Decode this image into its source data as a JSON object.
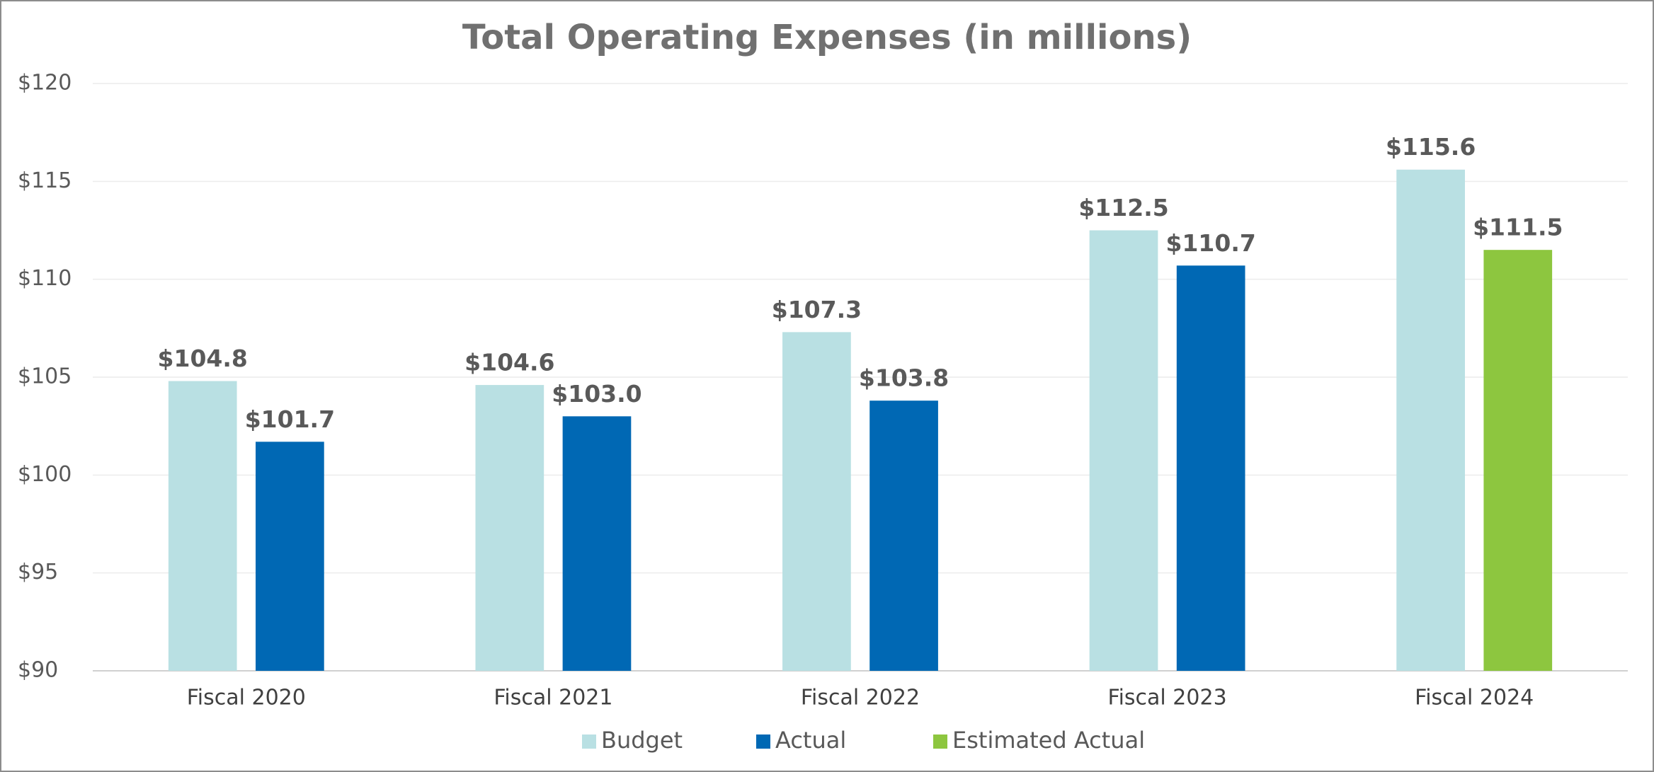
{
  "chart_data": {
    "type": "bar",
    "title": "Total Operating Expenses (in millions)",
    "categories": [
      "Fiscal 2020",
      "Fiscal 2021",
      "Fiscal 2022",
      "Fiscal 2023",
      "Fiscal 2024"
    ],
    "series": [
      {
        "name": "Budget",
        "color": "#b9e0e3",
        "values": [
          104.8,
          104.6,
          107.3,
          112.5,
          115.6
        ],
        "value_labels": [
          "$104.8",
          "$104.6",
          "$107.3",
          "$112.5",
          "$115.6"
        ]
      },
      {
        "name": "Actual",
        "color": "#0068b4",
        "values": [
          101.7,
          103.0,
          103.8,
          110.7,
          null
        ],
        "value_labels": [
          "$101.7",
          "$103.0",
          "$103.8",
          "$110.7",
          null
        ]
      },
      {
        "name": "Estimated Actual",
        "color": "#8dc63f",
        "values": [
          null,
          null,
          null,
          null,
          111.5
        ],
        "value_labels": [
          null,
          null,
          null,
          null,
          "$111.5"
        ]
      }
    ],
    "ylim": [
      90,
      120
    ],
    "yticks": [
      {
        "value": 90,
        "label": "$90"
      },
      {
        "value": 95,
        "label": "$95"
      },
      {
        "value": 100,
        "label": "$100"
      },
      {
        "value": 105,
        "label": "$105"
      },
      {
        "value": 110,
        "label": "$110"
      },
      {
        "value": 115,
        "label": "$115"
      },
      {
        "value": 120,
        "label": "$120"
      }
    ],
    "grid": true,
    "legend": "bottom"
  }
}
